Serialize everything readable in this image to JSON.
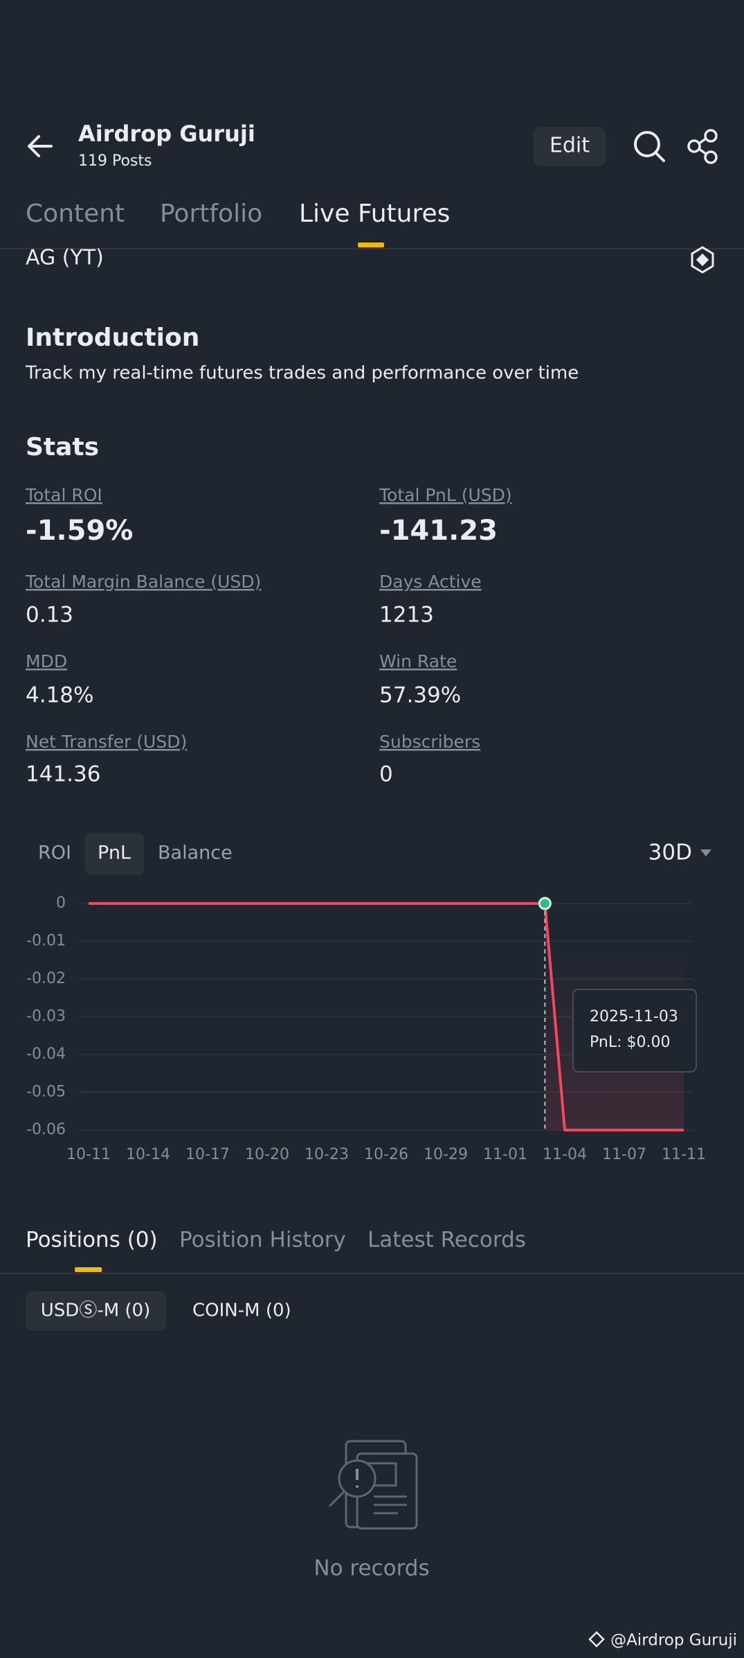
{
  "header": {
    "title": "Airdrop Guruji",
    "subtitle": "119 Posts",
    "edit": "Edit"
  },
  "tabs": [
    "Content",
    "Portfolio",
    "Live Futures"
  ],
  "profile_name": "AG (YT)",
  "introduction": {
    "title": "Introduction",
    "text": "Track my real-time futures trades and performance over time"
  },
  "stats": {
    "title": "Stats",
    "items": [
      {
        "label": "Total ROI",
        "value": "-1.59%"
      },
      {
        "label": "Total PnL (USD)",
        "value": "-141.23"
      },
      {
        "label": "Total Margin Balance (USD)",
        "value": "0.13"
      },
      {
        "label": "Days Active",
        "value": "1213"
      },
      {
        "label": "MDD",
        "value": "4.18%"
      },
      {
        "label": "Win Rate",
        "value": "57.39%"
      },
      {
        "label": "Net Transfer (USD)",
        "value": "141.36"
      },
      {
        "label": "Subscribers",
        "value": "0"
      }
    ]
  },
  "chart_tabs": [
    "ROI",
    "PnL",
    "Balance"
  ],
  "range": "30D",
  "chart_data": {
    "type": "line",
    "categories": [
      "10-11",
      null,
      null,
      "10-14",
      null,
      null,
      "10-17",
      null,
      null,
      "10-20",
      null,
      null,
      "10-23",
      null,
      null,
      "10-26",
      null,
      null,
      "10-29",
      null,
      null,
      "11-01",
      null,
      null,
      "11-04",
      null,
      null,
      "11-07",
      null,
      null,
      "11-11"
    ],
    "values": [
      0,
      0,
      0,
      0,
      0,
      0,
      0,
      0,
      0,
      0,
      0,
      0,
      0,
      0,
      0,
      0,
      0,
      0,
      0,
      0,
      0,
      0,
      0,
      0,
      -0.06,
      -0.06,
      -0.06,
      -0.06,
      -0.06,
      -0.06,
      -0.06
    ],
    "color": "#f6465d",
    "ylim": [
      -0.06,
      0
    ],
    "yticks": [
      0,
      -0.01,
      -0.02,
      -0.03,
      -0.04,
      -0.05,
      -0.06
    ],
    "grid": true,
    "tooltip": {
      "title": "2025-11-03",
      "text": "PnL: $0.00"
    }
  },
  "bottom_tabs": [
    "Positions (0)",
    "Position History",
    "Latest Records"
  ],
  "sub_tabs": [
    "USDⓈ-M (0)",
    "COIN-M (0)"
  ],
  "empty_text": "No records",
  "watermark": "@Airdrop Guruji"
}
